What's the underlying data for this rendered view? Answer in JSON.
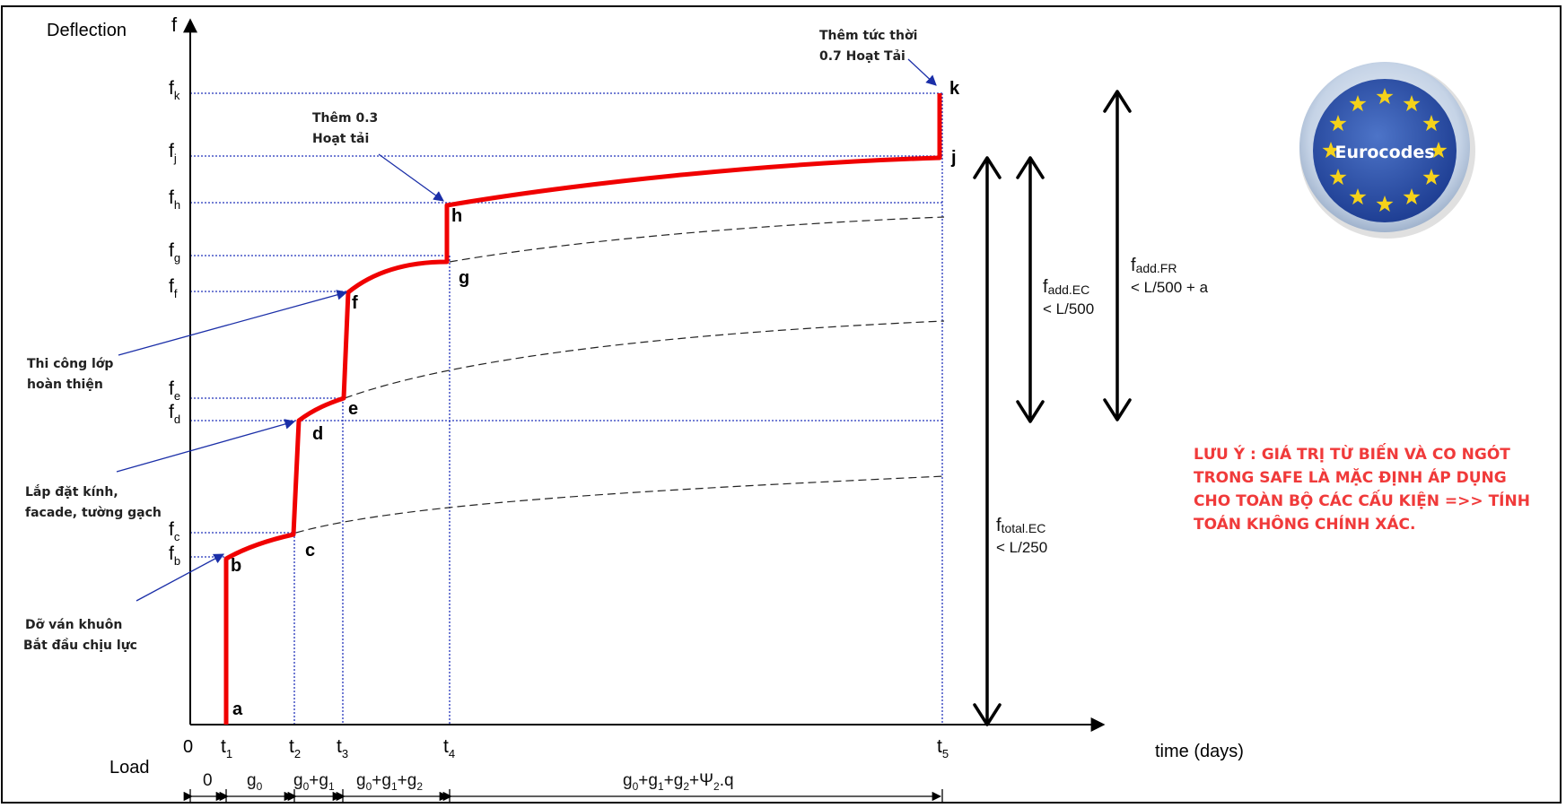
{
  "axes": {
    "y_label": "Deflection",
    "y_symbol": "f",
    "x_label": "time (days)",
    "load_label": "Load",
    "origin": "0"
  },
  "y_ticks": [
    {
      "base": "f",
      "sub": "k"
    },
    {
      "base": "f",
      "sub": "j"
    },
    {
      "base": "f",
      "sub": "h"
    },
    {
      "base": "f",
      "sub": "g"
    },
    {
      "base": "f",
      "sub": "f"
    },
    {
      "base": "f",
      "sub": "e"
    },
    {
      "base": "f",
      "sub": "d"
    },
    {
      "base": "f",
      "sub": "c"
    },
    {
      "base": "f",
      "sub": "b"
    }
  ],
  "x_ticks": [
    {
      "base": "t",
      "sub": "1"
    },
    {
      "base": "t",
      "sub": "2"
    },
    {
      "base": "t",
      "sub": "3"
    },
    {
      "base": "t",
      "sub": "4"
    },
    {
      "base": "t",
      "sub": "5"
    }
  ],
  "points": [
    "a",
    "b",
    "c",
    "d",
    "e",
    "f",
    "g",
    "h",
    "j",
    "k"
  ],
  "load_stages": {
    "s0": "0",
    "s1": {
      "a": "g",
      "a_sub": "0"
    },
    "s2": {
      "a": "g",
      "a_sub": "0",
      "op": "+",
      "b": "g",
      "b_sub": "1"
    },
    "s3": {
      "a": "g",
      "a_sub": "0",
      "op1": "+",
      "b": "g",
      "b_sub": "1",
      "op2": "+",
      "c": "g",
      "c_sub": "2"
    },
    "s4": {
      "a": "g",
      "a_sub": "0",
      "op1": "+",
      "b": "g",
      "b_sub": "1",
      "op2": "+",
      "c": "g",
      "c_sub": "2",
      "op3": "+",
      "d": "Ψ",
      "d_sub": "2",
      "tail": ".q"
    }
  },
  "annotations": {
    "formwork": [
      "Dỡ ván khuôn",
      "Bắt đầu chịu lực"
    ],
    "glass": [
      "Lắp đặt kính,",
      "facade, tường gạch"
    ],
    "finishing": [
      "Thi công lớp",
      "hoàn thiện"
    ],
    "live_03": [
      "Thêm 0.3",
      "Hoạt tải"
    ],
    "live_07": [
      "Thêm tức thời",
      "0.7 Hoạt Tải"
    ]
  },
  "limits": {
    "total": {
      "base": "f",
      "sub": "total.EC",
      "limit": "< L/250"
    },
    "add_ec": {
      "base": "f",
      "sub": "add.EC",
      "limit": "< L/500"
    },
    "add_fr": {
      "base": "f",
      "sub": "add.FR",
      "limit": "< L/500 + a"
    }
  },
  "logo": {
    "text": "Eurocodes",
    "ring": "#c8d6e8",
    "disc": "#2b4fa8",
    "stars": "#f5d21a"
  },
  "note": [
    "LƯU Ý : GIÁ TRỊ TỪ BIẾN VÀ CO NGÓT",
    "TRONG SAFE LÀ MẶC ĐỊNH ÁP DỤNG",
    "CHO TOÀN BỘ CÁC CẤU KIỆN =>> TÍNH",
    "TOÁN KHÔNG CHÍNH XÁC."
  ],
  "colors": {
    "curve": "#f00000",
    "guide": "#2233bb",
    "annotation_arrow": "#1b2fa8",
    "note": "#f03a3a"
  }
}
